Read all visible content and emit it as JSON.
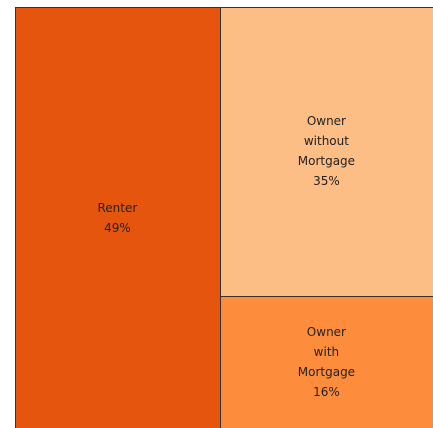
{
  "chart_data": {
    "type": "treemap",
    "categories": [
      "Renter",
      "Owner without Mortgage",
      "Owner with Mortgage"
    ],
    "values": [
      49,
      35,
      16
    ],
    "value_labels": [
      "49%",
      "35%",
      "16%"
    ],
    "colors": [
      "#e6550d",
      "#fdbe85",
      "#fd8d3c"
    ]
  }
}
